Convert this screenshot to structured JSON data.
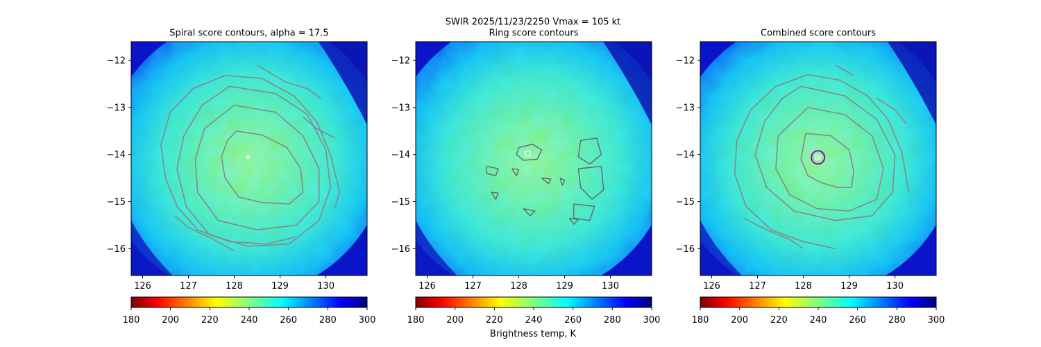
{
  "suptitle": "SWIR  2025/11/23/2250    Vmax = 105 kt",
  "colorbar_label": "Brightness temp, K",
  "chart_data": [
    {
      "type": "heatmap",
      "title": "Spiral score contours, alpha = 17.5",
      "xlim": [
        125.75,
        130.9
      ],
      "ylim": [
        -16.57,
        -11.6
      ],
      "xticks": [
        126,
        127,
        128,
        129,
        130
      ],
      "yticks": [
        -12,
        -13,
        -14,
        -15,
        -16
      ],
      "colorbar": {
        "ticks": [
          180,
          200,
          220,
          240,
          260,
          280,
          300
        ],
        "range": [
          180,
          300
        ],
        "colormap": "jet_r"
      },
      "center_marker": {
        "x": 128.3,
        "y": -14.05,
        "color": "#ffffff"
      },
      "contour_color": "#888888",
      "contours": [
        [
          [
            128.05,
            -13.5
          ],
          [
            128.6,
            -13.58
          ],
          [
            129.15,
            -13.85
          ],
          [
            129.45,
            -14.3
          ],
          [
            129.5,
            -14.8
          ],
          [
            129.2,
            -15.05
          ],
          [
            128.6,
            -15.02
          ],
          [
            128.1,
            -14.9
          ],
          [
            127.8,
            -14.5
          ],
          [
            127.72,
            -14.05
          ],
          [
            127.85,
            -13.7
          ],
          [
            128.05,
            -13.5
          ]
        ],
        [
          [
            128.0,
            -12.95
          ],
          [
            128.9,
            -13.1
          ],
          [
            129.5,
            -13.6
          ],
          [
            129.85,
            -14.3
          ],
          [
            129.85,
            -15.0
          ],
          [
            129.35,
            -15.5
          ],
          [
            128.5,
            -15.6
          ],
          [
            127.65,
            -15.4
          ],
          [
            127.2,
            -14.8
          ],
          [
            127.15,
            -14.1
          ],
          [
            127.35,
            -13.45
          ],
          [
            128.0,
            -12.95
          ]
        ],
        [
          [
            127.9,
            -12.55
          ],
          [
            128.9,
            -12.7
          ],
          [
            129.6,
            -13.15
          ],
          [
            130.0,
            -13.9
          ],
          [
            130.1,
            -14.7
          ],
          [
            129.85,
            -15.4
          ],
          [
            129.2,
            -15.9
          ],
          [
            128.3,
            -15.95
          ],
          [
            127.45,
            -15.7
          ],
          [
            126.95,
            -15.1
          ],
          [
            126.75,
            -14.3
          ],
          [
            126.9,
            -13.6
          ],
          [
            127.3,
            -12.95
          ],
          [
            127.9,
            -12.55
          ]
        ],
        [
          [
            129.35,
            -15.75
          ],
          [
            128.7,
            -15.9
          ],
          [
            127.9,
            -15.85
          ],
          [
            127.2,
            -15.6
          ],
          [
            126.75,
            -15.1
          ],
          [
            126.5,
            -14.5
          ],
          [
            126.4,
            -13.8
          ],
          [
            126.6,
            -13.1
          ],
          [
            127.1,
            -12.6
          ],
          [
            127.8,
            -12.32
          ],
          [
            128.6,
            -12.38
          ],
          [
            129.3,
            -12.75
          ],
          [
            129.8,
            -13.3
          ],
          [
            130.1,
            -14.0
          ],
          [
            130.3,
            -14.8
          ],
          [
            130.2,
            -15.12
          ]
        ],
        [
          [
            128.5,
            -12.1
          ],
          [
            129.1,
            -12.45
          ],
          [
            129.6,
            -12.6
          ],
          [
            129.9,
            -12.82
          ]
        ],
        [
          [
            129.5,
            -13.2
          ],
          [
            129.8,
            -13.45
          ],
          [
            130.2,
            -13.65
          ]
        ],
        [
          [
            126.7,
            -15.3
          ],
          [
            127.0,
            -15.55
          ],
          [
            127.5,
            -15.78
          ],
          [
            128.0,
            -16.05
          ]
        ]
      ]
    },
    {
      "type": "heatmap",
      "title": "Ring score contours",
      "xlim": [
        125.75,
        130.9
      ],
      "ylim": [
        -16.57,
        -11.6
      ],
      "xticks": [
        126,
        127,
        128,
        129,
        130
      ],
      "yticks": [
        -12,
        -13,
        -14,
        -15,
        -16
      ],
      "colorbar": {
        "ticks": [
          180,
          200,
          220,
          240,
          260,
          280,
          300
        ],
        "range": [
          180,
          300
        ],
        "colormap": "jet_r"
      },
      "center_marker": {
        "x": 128.2,
        "y": -13.98,
        "color": "#ffffff"
      },
      "contour_color": "#666666",
      "contours": [
        [
          [
            128.0,
            -13.85
          ],
          [
            128.3,
            -13.78
          ],
          [
            128.5,
            -13.9
          ],
          [
            128.4,
            -14.1
          ],
          [
            128.1,
            -14.12
          ],
          [
            127.95,
            -14.0
          ],
          [
            128.0,
            -13.85
          ]
        ],
        [
          [
            129.35,
            -13.7
          ],
          [
            129.7,
            -13.65
          ],
          [
            129.8,
            -14.0
          ],
          [
            129.55,
            -14.2
          ],
          [
            129.3,
            -14.05
          ],
          [
            129.35,
            -13.7
          ]
        ],
        [
          [
            129.3,
            -14.3
          ],
          [
            129.8,
            -14.25
          ],
          [
            129.85,
            -14.75
          ],
          [
            129.6,
            -14.95
          ],
          [
            129.35,
            -14.7
          ],
          [
            129.3,
            -14.3
          ]
        ],
        [
          [
            129.2,
            -15.05
          ],
          [
            129.65,
            -15.1
          ],
          [
            129.55,
            -15.4
          ],
          [
            129.2,
            -15.35
          ],
          [
            129.2,
            -15.05
          ]
        ],
        [
          [
            127.3,
            -14.25
          ],
          [
            127.55,
            -14.3
          ],
          [
            127.5,
            -14.45
          ],
          [
            127.3,
            -14.4
          ],
          [
            127.3,
            -14.25
          ]
        ],
        [
          [
            127.85,
            -14.3
          ],
          [
            128.0,
            -14.32
          ],
          [
            127.95,
            -14.45
          ],
          [
            127.85,
            -14.3
          ]
        ],
        [
          [
            128.5,
            -14.5
          ],
          [
            128.7,
            -14.52
          ],
          [
            128.65,
            -14.62
          ],
          [
            128.5,
            -14.5
          ]
        ],
        [
          [
            127.4,
            -14.8
          ],
          [
            127.55,
            -14.82
          ],
          [
            127.5,
            -14.95
          ],
          [
            127.4,
            -14.8
          ]
        ],
        [
          [
            128.1,
            -15.15
          ],
          [
            128.35,
            -15.2
          ],
          [
            128.25,
            -15.3
          ],
          [
            128.1,
            -15.15
          ]
        ],
        [
          [
            128.9,
            -14.5
          ],
          [
            129.0,
            -14.55
          ],
          [
            128.95,
            -14.65
          ],
          [
            128.9,
            -14.5
          ]
        ],
        [
          [
            129.1,
            -15.35
          ],
          [
            129.3,
            -15.38
          ],
          [
            129.2,
            -15.48
          ],
          [
            129.1,
            -15.35
          ]
        ]
      ]
    },
    {
      "type": "heatmap",
      "title": "Combined score contours",
      "xlim": [
        125.75,
        130.9
      ],
      "ylim": [
        -16.57,
        -11.6
      ],
      "xticks": [
        126,
        127,
        128,
        129,
        130
      ],
      "yticks": [
        -12,
        -13,
        -14,
        -15,
        -16
      ],
      "colorbar": {
        "ticks": [
          180,
          200,
          220,
          240,
          260,
          280,
          300
        ],
        "range": [
          180,
          300
        ],
        "colormap": "jet_r"
      },
      "center_marker": {
        "x": 128.32,
        "y": -14.06,
        "color": "#ffffff"
      },
      "circle_marker": {
        "x": 128.32,
        "y": -14.06,
        "color": "#9400d3"
      },
      "contour_color": "#888888",
      "contours": [
        [
          [
            128.05,
            -13.55
          ],
          [
            128.6,
            -13.6
          ],
          [
            129.0,
            -13.9
          ],
          [
            129.1,
            -14.35
          ],
          [
            129.05,
            -14.7
          ],
          [
            128.75,
            -14.7
          ],
          [
            128.4,
            -14.6
          ],
          [
            128.1,
            -14.45
          ],
          [
            127.95,
            -14.1
          ],
          [
            128.05,
            -13.55
          ]
        ],
        [
          [
            128.1,
            -13.0
          ],
          [
            128.9,
            -13.15
          ],
          [
            129.5,
            -13.6
          ],
          [
            129.75,
            -14.3
          ],
          [
            129.6,
            -14.95
          ],
          [
            129.0,
            -15.2
          ],
          [
            128.3,
            -15.15
          ],
          [
            127.7,
            -14.85
          ],
          [
            127.4,
            -14.3
          ],
          [
            127.45,
            -13.6
          ],
          [
            128.1,
            -13.0
          ]
        ],
        [
          [
            127.95,
            -12.55
          ],
          [
            128.9,
            -12.75
          ],
          [
            129.6,
            -13.25
          ],
          [
            130.0,
            -14.0
          ],
          [
            129.95,
            -14.8
          ],
          [
            129.5,
            -15.3
          ],
          [
            128.7,
            -15.4
          ],
          [
            127.8,
            -15.2
          ],
          [
            127.2,
            -14.7
          ],
          [
            126.95,
            -14.0
          ],
          [
            127.15,
            -13.3
          ],
          [
            127.55,
            -12.8
          ],
          [
            127.95,
            -12.55
          ]
        ],
        [
          [
            128.7,
            -16.0
          ],
          [
            128.0,
            -15.85
          ],
          [
            127.3,
            -15.6
          ],
          [
            126.75,
            -15.1
          ],
          [
            126.5,
            -14.4
          ],
          [
            126.55,
            -13.7
          ],
          [
            126.85,
            -13.05
          ],
          [
            127.4,
            -12.55
          ],
          [
            128.1,
            -12.3
          ],
          [
            128.8,
            -12.42
          ],
          [
            129.4,
            -12.75
          ],
          [
            129.85,
            -13.25
          ],
          [
            130.15,
            -13.95
          ],
          [
            130.3,
            -14.8
          ]
        ],
        [
          [
            128.7,
            -12.1
          ],
          [
            129.1,
            -12.32
          ]
        ],
        [
          [
            129.6,
            -12.8
          ],
          [
            130.0,
            -13.05
          ],
          [
            130.25,
            -13.35
          ]
        ],
        [
          [
            126.7,
            -15.35
          ],
          [
            127.2,
            -15.6
          ],
          [
            127.7,
            -15.8
          ],
          [
            128.0,
            -16.0
          ]
        ]
      ]
    }
  ]
}
